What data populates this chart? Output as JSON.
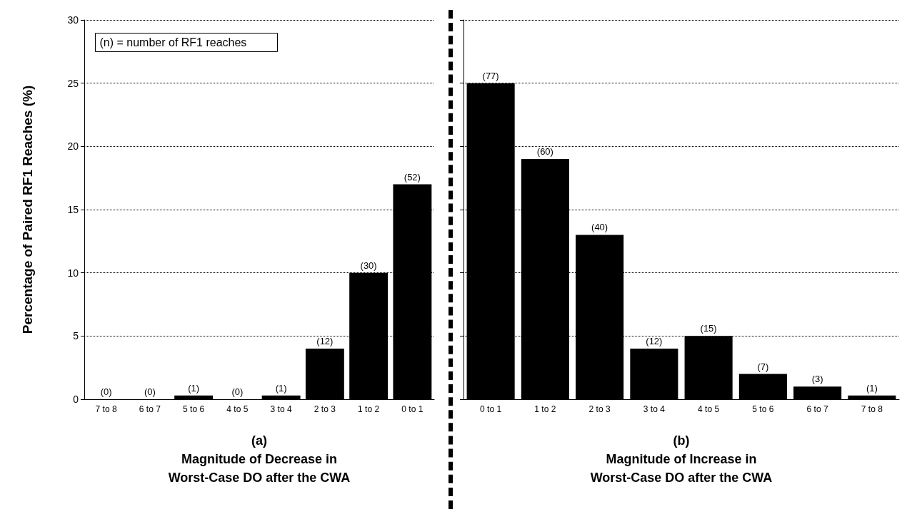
{
  "chart_data": [
    {
      "type": "bar",
      "categories": [
        "7 to 8",
        "6 to 7",
        "5 to 6",
        "4 to 5",
        "3 to 4",
        "2 to 3",
        "1 to 2",
        "0 to 1"
      ],
      "values": [
        0,
        0,
        0.3,
        0,
        0.3,
        4,
        10,
        17
      ],
      "color": "#000000",
      "xlabel": "(a)\nMagnitude of Decrease in\nWorst-Case DO after the CWA",
      "ylabel": "Percentage of Paired RF1 Reaches (%)",
      "ylim": [
        0,
        30
      ],
      "yticks": [
        0,
        5,
        10,
        15,
        20,
        25,
        30
      ],
      "grid": "y",
      "annotations": [
        "(n) = number of RF1 reaches",
        {
          "text": "(0)",
          "x": "7 to 8",
          "y": 0
        },
        {
          "text": "(0)",
          "x": "6 to 7",
          "y": 0
        },
        {
          "text": "(1)",
          "x": "5 to 6",
          "y": 0.3
        },
        {
          "text": "(0)",
          "x": "4 to 5",
          "y": 0
        },
        {
          "text": "(1)",
          "x": "3 to 4",
          "y": 0.3
        },
        {
          "text": "(12)",
          "x": "2 to 3",
          "y": 4
        },
        {
          "text": "(30)",
          "x": "1 to 2",
          "y": 10
        },
        {
          "text": "(52)",
          "x": "0 to 1",
          "y": 17
        }
      ]
    },
    {
      "type": "bar",
      "categories": [
        "0 to 1",
        "1 to 2",
        "2 to 3",
        "3 to 4",
        "4 to 5",
        "5 to 6",
        "6 to 7",
        "7 to 8"
      ],
      "values": [
        25,
        19,
        13,
        4,
        5,
        2,
        1,
        0.3
      ],
      "color": "#000000",
      "xlabel": "(b)\nMagnitude of Increase in\nWorst-Case DO after the CWA",
      "ylim": [
        0,
        30
      ],
      "yticks": [
        0,
        5,
        10,
        15,
        20,
        25,
        30
      ],
      "grid": "y",
      "tick_labels": "x",
      "annotations": [
        {
          "text": "(77)",
          "x": "0 to 1",
          "y": 25
        },
        {
          "text": "(60)",
          "x": "1 to 2",
          "y": 19
        },
        {
          "text": "(40)",
          "x": "2 to 3",
          "y": 13
        },
        {
          "text": "(12)",
          "x": "3 to 4",
          "y": 4
        },
        {
          "text": "(15)",
          "x": "4 to 5",
          "y": 5
        },
        {
          "text": "(7)",
          "x": "5 to 6",
          "y": 2
        },
        {
          "text": "(3)",
          "x": "6 to 7",
          "y": 1
        },
        {
          "text": "(1)",
          "x": "7 to 8",
          "y": 0.3
        }
      ]
    }
  ]
}
